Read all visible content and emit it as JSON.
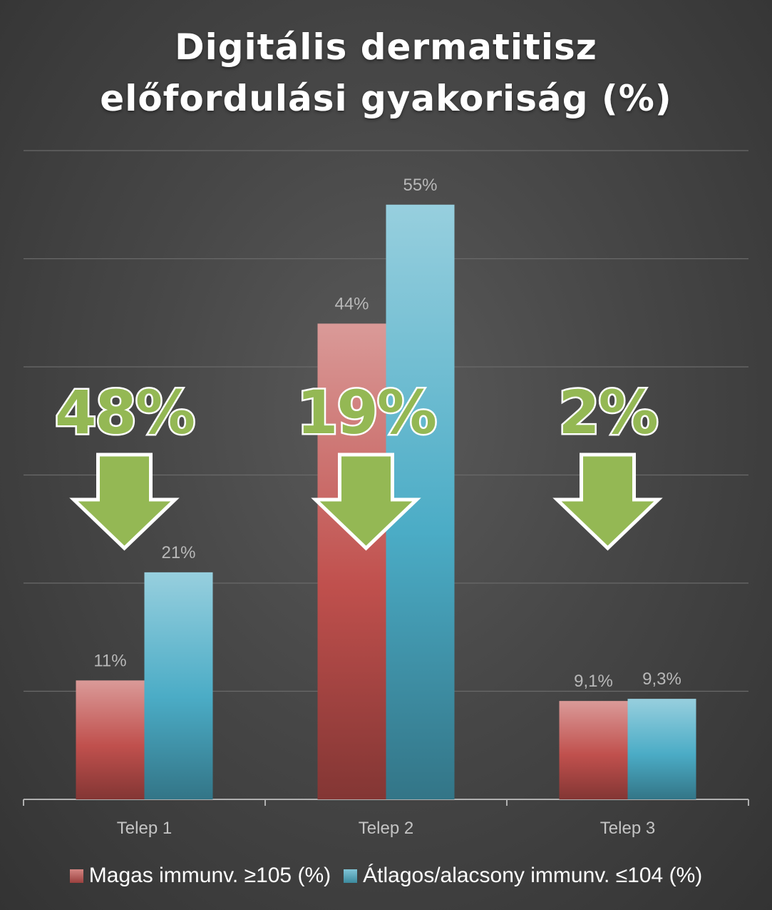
{
  "chart_data": {
    "type": "bar",
    "title": [
      "Digitális dermatitisz",
      "előfordulási gyakoriság (%)"
    ],
    "categories": [
      "Telep 1",
      "Telep 2",
      "Telep 3"
    ],
    "series": [
      {
        "name": "Magas immunv. ≥105 (%)",
        "values": [
          11,
          44,
          9.1
        ],
        "labels": [
          "11%",
          "44%",
          "9,1%"
        ],
        "color": "#c0504d"
      },
      {
        "name": "Átlagos/alacsony immunv. ≤104 (%)",
        "values": [
          21,
          55,
          9.3
        ],
        "labels": [
          "21%",
          "55%",
          "9,3%"
        ],
        "color": "#4bacc6"
      }
    ],
    "ylim": [
      0,
      60
    ],
    "grid": true,
    "legend_position": "bottom",
    "annotations": [
      {
        "category": "Telep 1",
        "text": "48%",
        "icon": "down-arrow-icon"
      },
      {
        "category": "Telep 2",
        "text": "19%",
        "icon": "down-arrow-icon"
      },
      {
        "category": "Telep 3",
        "text": "2%",
        "icon": "down-arrow-icon"
      }
    ],
    "annotation_color": "#94b854"
  }
}
